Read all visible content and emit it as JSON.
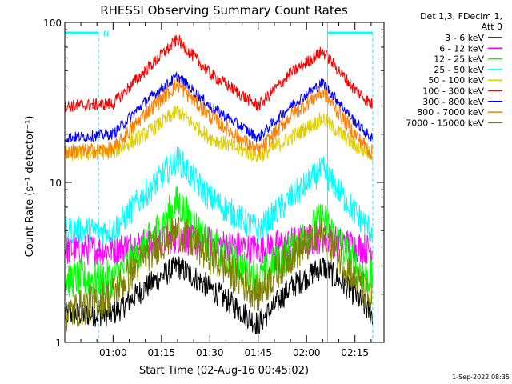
{
  "chart_data": {
    "type": "line",
    "title": "RHESSI Observing Summary Count Rates",
    "xlabel": "Start Time (02-Aug-16 00:45:02)",
    "ylabel": "Count Rate (s⁻¹ detector⁻¹)",
    "y_scale": "log",
    "ylim": [
      1,
      100
    ],
    "y_tick_labels": [
      "1",
      "10",
      "100"
    ],
    "x_range": [
      "00:45:02",
      "02:24:00"
    ],
    "x_tick_labels": [
      "01:00",
      "01:15",
      "01:30",
      "01:45",
      "02:00",
      "02:15"
    ],
    "grid": false,
    "legend_position": "top-right",
    "legend_header": [
      "Det 1,3, FDecim 1,",
      "Att 0"
    ],
    "annotation_flag": "N",
    "series": [
      {
        "name": "3 - 6 keV",
        "color": "#000000",
        "x": [
          "00:45",
          "01:00",
          "01:10",
          "01:20",
          "01:30",
          "01:45",
          "01:55",
          "02:05",
          "02:15",
          "02:20"
        ],
        "values": [
          1.5,
          1.5,
          2.2,
          3.0,
          2.2,
          1.3,
          2.2,
          3.0,
          2.0,
          1.5
        ]
      },
      {
        "name": "6 - 12 keV",
        "color": "#ff00ff",
        "x": [
          "00:45",
          "01:00",
          "01:10",
          "01:20",
          "01:30",
          "01:45",
          "01:55",
          "02:05",
          "02:15",
          "02:20"
        ],
        "values": [
          3.8,
          3.8,
          4.2,
          4.5,
          4.2,
          3.8,
          4.2,
          4.5,
          4.0,
          3.8
        ]
      },
      {
        "name": "12 - 25 keV",
        "color": "#00ff00",
        "x": [
          "00:45",
          "01:00",
          "01:10",
          "01:20",
          "01:30",
          "01:45",
          "01:55",
          "02:05",
          "02:15",
          "02:20"
        ],
        "values": [
          2.5,
          2.5,
          4.0,
          7.5,
          4.0,
          2.5,
          3.8,
          6.0,
          3.0,
          2.5
        ]
      },
      {
        "name": "25 - 50 keV",
        "color": "#00ffff",
        "x": [
          "00:45",
          "01:00",
          "01:10",
          "01:20",
          "01:30",
          "01:45",
          "01:55",
          "02:05",
          "02:15",
          "02:20"
        ],
        "values": [
          5.0,
          5.0,
          8.5,
          14.0,
          8.0,
          5.0,
          8.0,
          12.0,
          6.5,
          5.0
        ]
      },
      {
        "name": "50 - 100 keV",
        "color": "#e0d000",
        "x": [
          "00:45",
          "01:00",
          "01:10",
          "01:20",
          "01:30",
          "01:45",
          "01:55",
          "02:05",
          "02:15",
          "02:20"
        ],
        "values": [
          15.0,
          15.5,
          20.0,
          28.0,
          19.0,
          14.5,
          19.0,
          25.0,
          17.0,
          15.0
        ]
      },
      {
        "name": "100 - 300 keV",
        "color": "#ff0000",
        "x": [
          "00:45",
          "01:00",
          "01:10",
          "01:20",
          "01:30",
          "01:45",
          "01:55",
          "02:05",
          "02:15",
          "02:20"
        ],
        "values": [
          30.0,
          31.0,
          50.0,
          78.0,
          48.0,
          30.0,
          48.0,
          66.0,
          38.0,
          31.0
        ]
      },
      {
        "name": "300 - 800 keV",
        "color": "#0000ff",
        "x": [
          "00:45",
          "01:00",
          "01:10",
          "01:20",
          "01:30",
          "01:45",
          "01:55",
          "02:05",
          "02:15",
          "02:20"
        ],
        "values": [
          19.0,
          20.0,
          32.0,
          46.0,
          30.0,
          19.0,
          30.0,
          42.0,
          24.0,
          19.0
        ]
      },
      {
        "name": "800 - 7000 keV",
        "color": "#ff8000",
        "x": [
          "00:45",
          "01:00",
          "01:10",
          "01:20",
          "01:30",
          "01:45",
          "01:55",
          "02:05",
          "02:15",
          "02:20"
        ],
        "values": [
          15.5,
          16.0,
          27.0,
          41.0,
          26.0,
          15.5,
          26.0,
          37.0,
          20.0,
          15.5
        ]
      },
      {
        "name": "7000 - 15000 keV",
        "color": "#808000",
        "x": [
          "00:45",
          "01:00",
          "01:10",
          "01:20",
          "01:30",
          "01:45",
          "01:55",
          "02:05",
          "02:15",
          "02:20"
        ],
        "values": [
          1.5,
          2.0,
          3.5,
          5.0,
          3.5,
          2.0,
          3.5,
          4.8,
          2.5,
          1.8
        ]
      }
    ]
  },
  "footer": {
    "timestamp": "1-Sep-2022 08:35"
  }
}
